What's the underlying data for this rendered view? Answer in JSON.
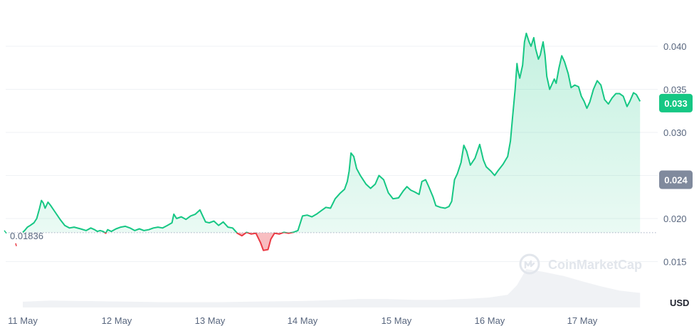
{
  "chart_data": {
    "type": "area",
    "unit": "USD",
    "watermark": "CoinMarketCap",
    "x_ticks": [
      "11 May",
      "12 May",
      "13 May",
      "14 May",
      "15 May",
      "16 May",
      "17 May"
    ],
    "y_ticks": [
      "0.040",
      "0.035",
      "0.030",
      "0.020",
      "0.015"
    ],
    "ylim": [
      0.0105,
      0.0445
    ],
    "reference_value": 0.01836,
    "reference_label": "0.01836",
    "current_price_label": "0.033",
    "current_price": 0.0334,
    "crosshair_price_label": "0.024",
    "crosshair_price": 0.0245,
    "grid": true,
    "colors": {
      "up": "#16c784",
      "down": "#ea3943",
      "up_fill": "#16c784",
      "down_fill": "#ea3943",
      "crosshair_badge": "#808a9d",
      "grid": "#eff2f5",
      "tick_text": "#58667e",
      "volume": "#f0f2f5"
    },
    "series": [
      {
        "values": [
          [
            0.0,
            0.0184
          ],
          [
            0.02,
            0.0186
          ],
          [
            0.05,
            0.019
          ],
          [
            0.08,
            0.0192
          ],
          [
            0.12,
            0.0195
          ],
          [
            0.15,
            0.02
          ],
          [
            0.18,
            0.0212
          ],
          [
            0.2,
            0.0221
          ],
          [
            0.22,
            0.0218
          ],
          [
            0.24,
            0.0212
          ],
          [
            0.27,
            0.0219
          ],
          [
            0.3,
            0.0215
          ],
          [
            0.35,
            0.0207
          ],
          [
            0.4,
            0.0199
          ],
          [
            0.45,
            0.0192
          ],
          [
            0.5,
            0.0189
          ],
          [
            0.55,
            0.019
          ],
          [
            0.62,
            0.0188
          ],
          [
            0.68,
            0.0186
          ],
          [
            0.73,
            0.0189
          ],
          [
            0.77,
            0.0187
          ],
          [
            0.8,
            0.0185
          ],
          [
            0.83,
            0.0186
          ],
          [
            0.86,
            0.0185
          ],
          [
            0.89,
            0.0183
          ],
          [
            0.91,
            0.0187
          ],
          [
            0.95,
            0.0185
          ],
          [
            1.0,
            0.0188
          ],
          [
            1.05,
            0.019
          ],
          [
            1.1,
            0.0191
          ],
          [
            1.15,
            0.0189
          ],
          [
            1.2,
            0.0186
          ],
          [
            1.25,
            0.0188
          ],
          [
            1.3,
            0.0186
          ],
          [
            1.35,
            0.0187
          ],
          [
            1.4,
            0.0189
          ],
          [
            1.45,
            0.019
          ],
          [
            1.5,
            0.0189
          ],
          [
            1.55,
            0.0192
          ],
          [
            1.6,
            0.0195
          ],
          [
            1.62,
            0.0205
          ],
          [
            1.65,
            0.02
          ],
          [
            1.7,
            0.0202
          ],
          [
            1.75,
            0.0199
          ],
          [
            1.8,
            0.0203
          ],
          [
            1.85,
            0.0205
          ],
          [
            1.9,
            0.021
          ],
          [
            1.93,
            0.0203
          ],
          [
            1.96,
            0.0196
          ],
          [
            2.0,
            0.0195
          ],
          [
            2.05,
            0.0197
          ],
          [
            2.1,
            0.0192
          ],
          [
            2.15,
            0.0196
          ],
          [
            2.2,
            0.019
          ],
          [
            2.25,
            0.0189
          ],
          [
            2.3,
            0.0183
          ],
          [
            2.35,
            0.018
          ],
          [
            2.4,
            0.0184
          ],
          [
            2.45,
            0.0182
          ],
          [
            2.5,
            0.0183
          ],
          [
            2.55,
            0.0172
          ],
          [
            2.58,
            0.0163
          ],
          [
            2.63,
            0.0164
          ],
          [
            2.66,
            0.0176
          ],
          [
            2.7,
            0.0183
          ],
          [
            2.75,
            0.0182
          ],
          [
            2.8,
            0.0184
          ],
          [
            2.85,
            0.0183
          ],
          [
            2.9,
            0.0184
          ],
          [
            2.95,
            0.0186
          ],
          [
            3.0,
            0.0203
          ],
          [
            3.05,
            0.0204
          ],
          [
            3.1,
            0.0202
          ],
          [
            3.15,
            0.0205
          ],
          [
            3.2,
            0.0209
          ],
          [
            3.25,
            0.0213
          ],
          [
            3.3,
            0.0212
          ],
          [
            3.35,
            0.0223
          ],
          [
            3.4,
            0.0229
          ],
          [
            3.45,
            0.0234
          ],
          [
            3.48,
            0.0243
          ],
          [
            3.5,
            0.0255
          ],
          [
            3.52,
            0.0276
          ],
          [
            3.55,
            0.0272
          ],
          [
            3.58,
            0.0258
          ],
          [
            3.62,
            0.025
          ],
          [
            3.68,
            0.024
          ],
          [
            3.73,
            0.0235
          ],
          [
            3.78,
            0.024
          ],
          [
            3.82,
            0.025
          ],
          [
            3.87,
            0.0245
          ],
          [
            3.92,
            0.023
          ],
          [
            3.97,
            0.0223
          ],
          [
            4.03,
            0.0224
          ],
          [
            4.08,
            0.0232
          ],
          [
            4.12,
            0.0237
          ],
          [
            4.16,
            0.0233
          ],
          [
            4.2,
            0.0231
          ],
          [
            4.25,
            0.0228
          ],
          [
            4.28,
            0.0243
          ],
          [
            4.32,
            0.0245
          ],
          [
            4.35,
            0.0238
          ],
          [
            4.4,
            0.0225
          ],
          [
            4.43,
            0.0215
          ],
          [
            4.48,
            0.0213
          ],
          [
            4.53,
            0.0212
          ],
          [
            4.57,
            0.0214
          ],
          [
            4.6,
            0.022
          ],
          [
            4.63,
            0.0245
          ],
          [
            4.66,
            0.0252
          ],
          [
            4.7,
            0.0265
          ],
          [
            4.73,
            0.0285
          ],
          [
            4.76,
            0.0278
          ],
          [
            4.8,
            0.0262
          ],
          [
            4.85,
            0.027
          ],
          [
            4.9,
            0.0286
          ],
          [
            4.94,
            0.0268
          ],
          [
            4.97,
            0.026
          ],
          [
            5.02,
            0.0255
          ],
          [
            5.06,
            0.025
          ],
          [
            5.1,
            0.0256
          ],
          [
            5.15,
            0.0263
          ],
          [
            5.2,
            0.0272
          ],
          [
            5.23,
            0.029
          ],
          [
            5.25,
            0.0315
          ],
          [
            5.28,
            0.035
          ],
          [
            5.3,
            0.038
          ],
          [
            5.31,
            0.0372
          ],
          [
            5.33,
            0.0363
          ],
          [
            5.36,
            0.0378
          ],
          [
            5.38,
            0.0405
          ],
          [
            5.4,
            0.0415
          ],
          [
            5.43,
            0.0405
          ],
          [
            5.45,
            0.04
          ],
          [
            5.48,
            0.041
          ],
          [
            5.5,
            0.0397
          ],
          [
            5.53,
            0.0385
          ],
          [
            5.55,
            0.039
          ],
          [
            5.58,
            0.0405
          ],
          [
            5.6,
            0.039
          ],
          [
            5.62,
            0.0365
          ],
          [
            5.65,
            0.035
          ],
          [
            5.7,
            0.0362
          ],
          [
            5.72,
            0.0357
          ],
          [
            5.75,
            0.0375
          ],
          [
            5.78,
            0.0389
          ],
          [
            5.81,
            0.0382
          ],
          [
            5.85,
            0.0368
          ],
          [
            5.88,
            0.0352
          ],
          [
            5.92,
            0.0355
          ],
          [
            5.96,
            0.0353
          ],
          [
            5.99,
            0.0342
          ],
          [
            6.02,
            0.0336
          ],
          [
            6.05,
            0.0328
          ],
          [
            6.08,
            0.0335
          ],
          [
            6.12,
            0.035
          ],
          [
            6.16,
            0.036
          ],
          [
            6.2,
            0.0355
          ],
          [
            6.24,
            0.0338
          ],
          [
            6.28,
            0.0333
          ],
          [
            6.32,
            0.034
          ],
          [
            6.36,
            0.0345
          ],
          [
            6.4,
            0.0345
          ],
          [
            6.44,
            0.0342
          ],
          [
            6.48,
            0.033
          ],
          [
            6.51,
            0.0336
          ],
          [
            6.55,
            0.0346
          ],
          [
            6.58,
            0.0344
          ],
          [
            6.62,
            0.0336
          ]
        ]
      }
    ],
    "volume": [
      [
        0.0,
        0.15
      ],
      [
        0.3,
        0.18
      ],
      [
        0.6,
        0.17
      ],
      [
        0.9,
        0.16
      ],
      [
        1.2,
        0.15
      ],
      [
        1.5,
        0.14
      ],
      [
        1.8,
        0.14
      ],
      [
        2.1,
        0.14
      ],
      [
        2.4,
        0.15
      ],
      [
        2.7,
        0.16
      ],
      [
        3.0,
        0.17
      ],
      [
        3.3,
        0.19
      ],
      [
        3.6,
        0.22
      ],
      [
        3.9,
        0.22
      ],
      [
        4.2,
        0.2
      ],
      [
        4.5,
        0.2
      ],
      [
        4.8,
        0.23
      ],
      [
        5.0,
        0.26
      ],
      [
        5.2,
        0.33
      ],
      [
        5.3,
        0.58
      ],
      [
        5.4,
        1.0
      ],
      [
        5.6,
        0.92
      ],
      [
        5.8,
        0.82
      ],
      [
        6.0,
        0.68
      ],
      [
        6.2,
        0.55
      ],
      [
        6.4,
        0.44
      ],
      [
        6.62,
        0.38
      ]
    ]
  }
}
